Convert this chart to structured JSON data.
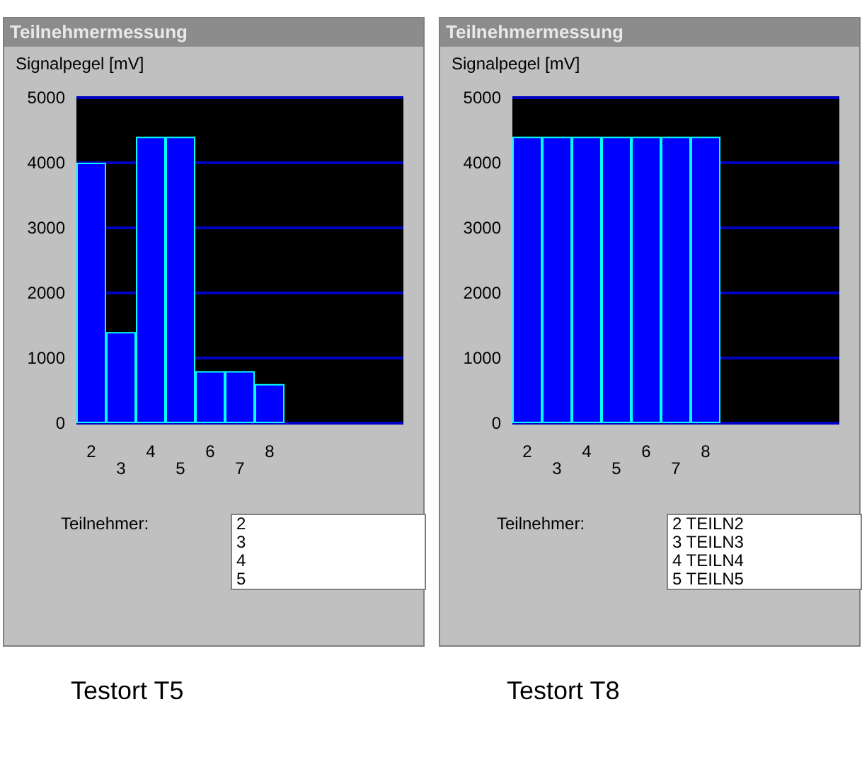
{
  "chart_data": [
    {
      "type": "bar",
      "title": "Teilnehmermessung",
      "ylabel": "Signalpegel [mV]",
      "categories": [
        "2",
        "3",
        "4",
        "5",
        "6",
        "7",
        "8",
        null,
        null,
        null,
        null
      ],
      "values": [
        4000,
        1400,
        4400,
        4400,
        800,
        800,
        600,
        null,
        null,
        null,
        null
      ],
      "color": "#0000ff",
      "ylim": [
        0,
        5000
      ],
      "yticks": [
        0,
        1000,
        2000,
        3000,
        4000,
        5000
      ],
      "grid": "y",
      "annotations": [
        "Teilnehmer:",
        "2",
        "3",
        "4",
        "5",
        "Testort T5"
      ]
    },
    {
      "type": "bar",
      "title": "Teilnehmermessung",
      "ylabel": "Signalpegel [mV]",
      "categories": [
        "2",
        "3",
        "4",
        "5",
        "6",
        "7",
        "8",
        null,
        null,
        null,
        null
      ],
      "values": [
        4400,
        4400,
        4400,
        4400,
        4400,
        4400,
        4400,
        null,
        null,
        null,
        null
      ],
      "color": "#0000ff",
      "ylim": [
        0,
        5000
      ],
      "yticks": [
        0,
        1000,
        2000,
        3000,
        4000,
        5000
      ],
      "grid": "y",
      "annotations": [
        "Teilnehmer:",
        "2 TEILN2",
        "3 TEILN3",
        "4 TEILN4",
        "5 TEILN5",
        "Testort T8"
      ]
    }
  ]
}
